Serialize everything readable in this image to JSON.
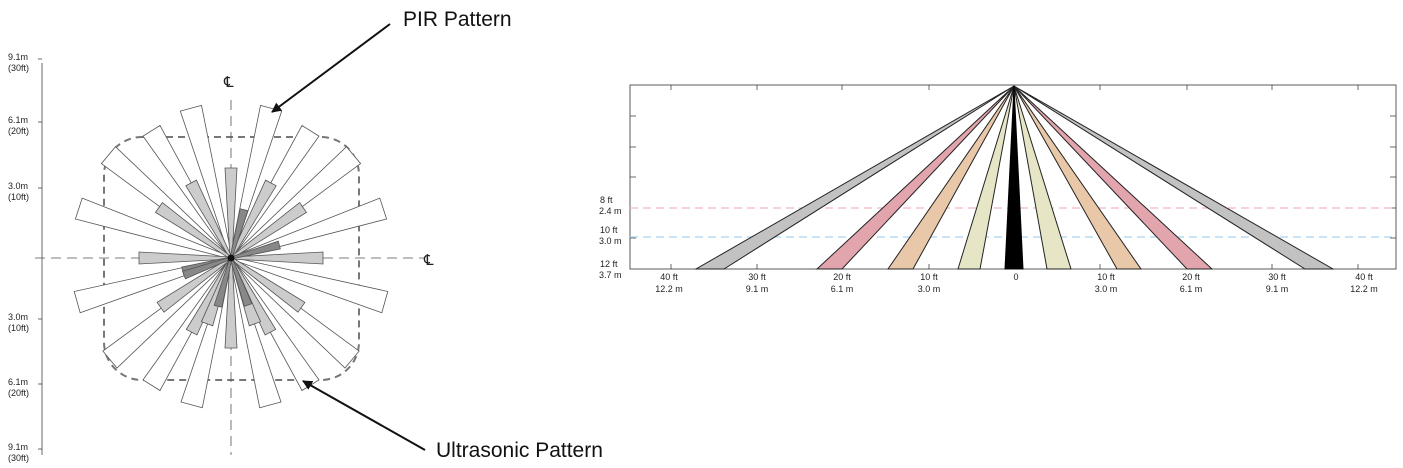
{
  "left_diagram": {
    "centerline_symbol": "℄",
    "ruler_top": [
      {
        "m": "9.1m",
        "ft": "(30ft)"
      },
      {
        "m": "6.1m",
        "ft": "(20ft)"
      },
      {
        "m": "3.0m",
        "ft": "(10ft)"
      }
    ],
    "ruler_bottom": [
      {
        "m": "3.0m",
        "ft": "(10ft)"
      },
      {
        "m": "6.1m",
        "ft": "(20ft)"
      },
      {
        "m": "9.1m",
        "ft": "(30ft)"
      }
    ],
    "callouts": {
      "pir": "PIR Pattern",
      "ultrasonic": "Ultrasonic Pattern"
    },
    "colors": {
      "pir_fill": "#ffffff",
      "ultrasonic_fill": "#cccccc",
      "ultrasonic_dark": "#888888",
      "outline": "#555555",
      "dashed": "#777777"
    }
  },
  "right_diagram": {
    "height_labels": [
      {
        "ft": "8 ft",
        "m": "2.4 m",
        "line_color": "#f4b8c4"
      },
      {
        "ft": "10 ft",
        "m": "3.0 m",
        "line_color": "#a8d4ef"
      },
      {
        "ft": "12 ft",
        "m": "3.7 m",
        "line_color": null
      }
    ],
    "distance_labels": [
      {
        "ft": "40 ft",
        "m": "12.2 m"
      },
      {
        "ft": "30 ft",
        "m": "9.1 m"
      },
      {
        "ft": "20 ft",
        "m": "6.1 m"
      },
      {
        "ft": "10 ft",
        "m": "3.0 m"
      },
      {
        "ft": "0",
        "m": ""
      },
      {
        "ft": "10 ft",
        "m": "3.0 m"
      },
      {
        "ft": "20 ft",
        "m": "6.1 m"
      },
      {
        "ft": "30 ft",
        "m": "9.1 m"
      },
      {
        "ft": "40 ft",
        "m": "12.2 m"
      }
    ],
    "beam_colors": [
      "#c2c2c2",
      "#e2a4ad",
      "#e8c8a8",
      "#e6e6c6",
      "#000000"
    ]
  }
}
